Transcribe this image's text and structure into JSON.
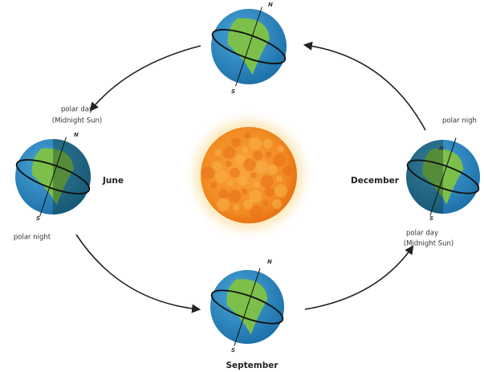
{
  "earths": [
    {
      "north": "N",
      "south": "S"
    },
    {
      "label": "June",
      "north_note": [
        "polar day",
        "(Midnight Sun)"
      ],
      "north": "N",
      "south": "S",
      "south_note": "polar night"
    },
    {
      "label": "December",
      "north_note": "polar nigh",
      "north": "N",
      "south": "S",
      "south_note": [
        "polar day",
        "(Midnight Sun)"
      ]
    },
    {
      "label": "September",
      "north": "N",
      "south": "S"
    }
  ]
}
